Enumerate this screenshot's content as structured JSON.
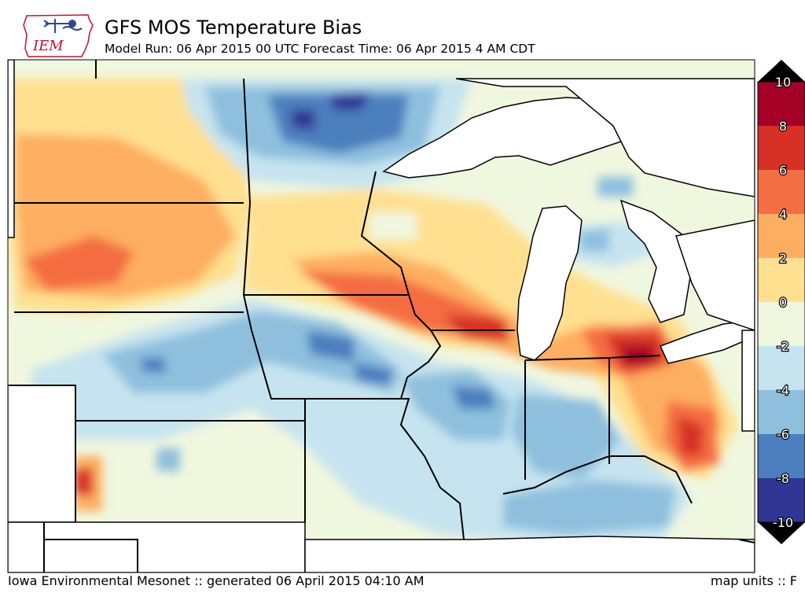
{
  "header": {
    "logo_text": "IEM",
    "title": "GFS MOS Temperature Bias",
    "subtitle": "Model Run: 06 Apr 2015 00 UTC Forecast Time: 06 Apr 2015 4 AM CDT"
  },
  "colorbar": {
    "levels": [
      "10",
      "8",
      "6",
      "4",
      "2",
      "0",
      "-2",
      "-4",
      "-6",
      "-8",
      "-10"
    ],
    "colors": [
      "#a50026",
      "#d73027",
      "#f46d43",
      "#fdae61",
      "#fee090",
      "#f0f7df",
      "#c6e4ef",
      "#8ec0de",
      "#4b7fbd",
      "#313695"
    ]
  },
  "footer": {
    "source": "Iowa Environmental Mesonet :: generated 06 April 2015 04:10 AM",
    "units": "map units :: F"
  }
}
